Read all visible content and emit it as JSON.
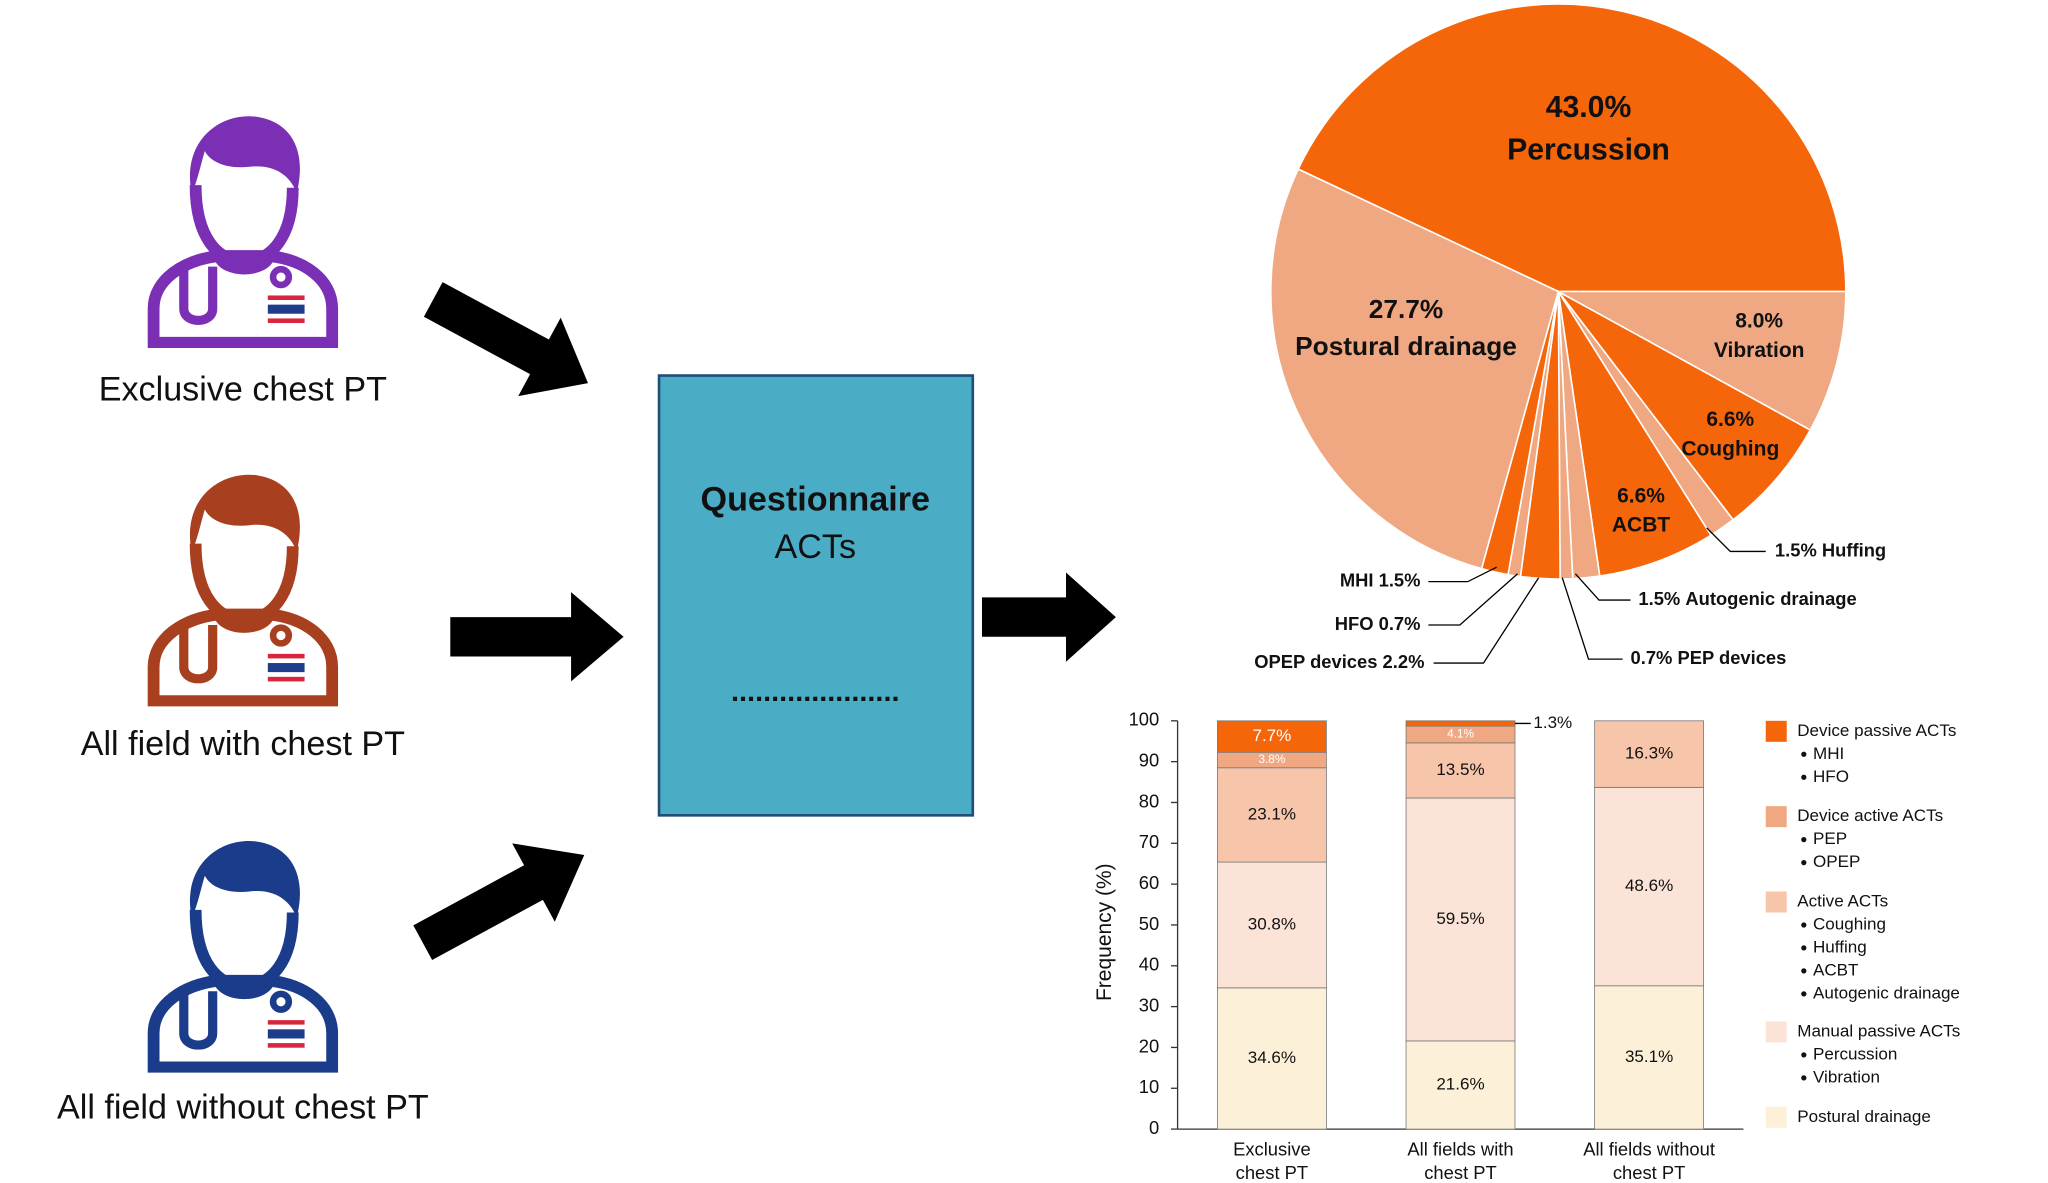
{
  "groups": [
    {
      "label": "Exclusive chest PT",
      "color": "#7b2fb5"
    },
    {
      "label": "All field with chest PT",
      "color": "#a8401f"
    },
    {
      "label": "All field without chest PT",
      "color": "#1b3c8a"
    }
  ],
  "questionnaire": {
    "title": "Questionnaire",
    "subtitle": "ACTs",
    "dots": "....................."
  },
  "chart_data": [
    {
      "type": "pie",
      "categories": [
        "Percussion",
        "Vibration",
        "Coughing",
        "Huffing",
        "ACBT",
        "Autogenic drainage",
        "PEP devices",
        "OPEP devices",
        "HFO",
        "MHI",
        "Postural drainage"
      ],
      "values": [
        43.0,
        8.0,
        6.6,
        1.5,
        6.6,
        1.5,
        0.7,
        2.2,
        0.7,
        1.5,
        27.7
      ],
      "value_labels": [
        "43.0%",
        "8.0%",
        "6.6%",
        "1.5%",
        "6.6%",
        "1.5%",
        "0.7%",
        "2.2%",
        "0.7%",
        "1.5%",
        "27.7%"
      ],
      "colors": [
        "#f5650a",
        "#f0a882",
        "#f5650a",
        "#f0a882",
        "#f5650a",
        "#f0a882",
        "#f0a882",
        "#f5650a",
        "#f0a882",
        "#f5650a",
        "#f0a882"
      ]
    },
    {
      "type": "bar",
      "stacked": true,
      "ylabel": "Frequency (%)",
      "categories": [
        "Exclusive\nchest PT",
        "All fields with\nchest PT",
        "All fields without\nchest PT"
      ],
      "ylim": [
        0,
        100
      ],
      "yticks": [
        0,
        10,
        20,
        30,
        40,
        50,
        60,
        70,
        80,
        90,
        100
      ],
      "series": [
        {
          "name": "Postural drainage",
          "items": [],
          "color": "#fdf0d9",
          "values": [
            34.6,
            21.6,
            35.1
          ],
          "value_labels": [
            "34.6%",
            "21.6%",
            "35.1%"
          ]
        },
        {
          "name": "Manual passive ACTs",
          "items": [
            "Percussion",
            "Vibration"
          ],
          "color": "#fbe3d8",
          "values": [
            30.8,
            59.5,
            48.6
          ],
          "value_labels": [
            "30.8%",
            "59.5%",
            "48.6%"
          ]
        },
        {
          "name": "Active ACTs",
          "items": [
            "Coughing",
            "Huffing",
            "ACBT",
            "Autogenic drainage"
          ],
          "color": "#f6c5aa",
          "values": [
            23.1,
            13.5,
            16.3
          ],
          "value_labels": [
            "23.1%",
            "13.5%",
            "16.3%"
          ]
        },
        {
          "name": "Device active ACTs",
          "items": [
            "PEP",
            "OPEP"
          ],
          "color": "#f0a882",
          "values": [
            3.8,
            4.1,
            0
          ],
          "value_labels": [
            "3.8%",
            "4.1%",
            null
          ]
        },
        {
          "name": "Device passive ACTs",
          "items": [
            "MHI",
            "HFO"
          ],
          "color": "#f5650a",
          "values": [
            7.7,
            1.3,
            0
          ],
          "value_labels": [
            "7.7%",
            "1.3%",
            null
          ]
        }
      ]
    }
  ]
}
